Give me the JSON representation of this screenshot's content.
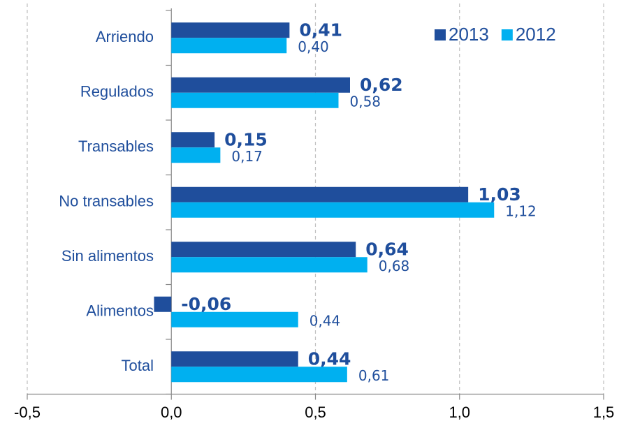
{
  "chart_data": {
    "type": "bar",
    "orientation": "horizontal",
    "categories": [
      "Arriendo",
      "Regulados",
      "Transables",
      "No transables",
      "Sin alimentos",
      "Alimentos",
      "Total"
    ],
    "series": [
      {
        "name": "2013",
        "color": "#1f4e9c",
        "values": [
          0.41,
          0.62,
          0.15,
          1.03,
          0.64,
          -0.06,
          0.44
        ],
        "value_labels": [
          "0,41",
          "0,62",
          "0,15",
          "1,03",
          "0,64",
          "-0,06",
          "0,44"
        ]
      },
      {
        "name": "2012",
        "color": "#00b0f0",
        "values": [
          0.4,
          0.58,
          0.17,
          1.12,
          0.68,
          0.44,
          0.61
        ],
        "value_labels": [
          "0,40",
          "0,58",
          "0,17",
          "1,12",
          "0,68",
          "0,44",
          "0,61"
        ]
      }
    ],
    "xlim": [
      -0.5,
      1.5
    ],
    "xticks": [
      {
        "value": -0.5,
        "label": "-0,5"
      },
      {
        "value": 0,
        "label": "0,0"
      },
      {
        "value": 0.5,
        "label": "0,5"
      },
      {
        "value": 1,
        "label": "1,0"
      },
      {
        "value": 1.5,
        "label": "1,5"
      }
    ],
    "grid": true,
    "legend": "top-right"
  }
}
